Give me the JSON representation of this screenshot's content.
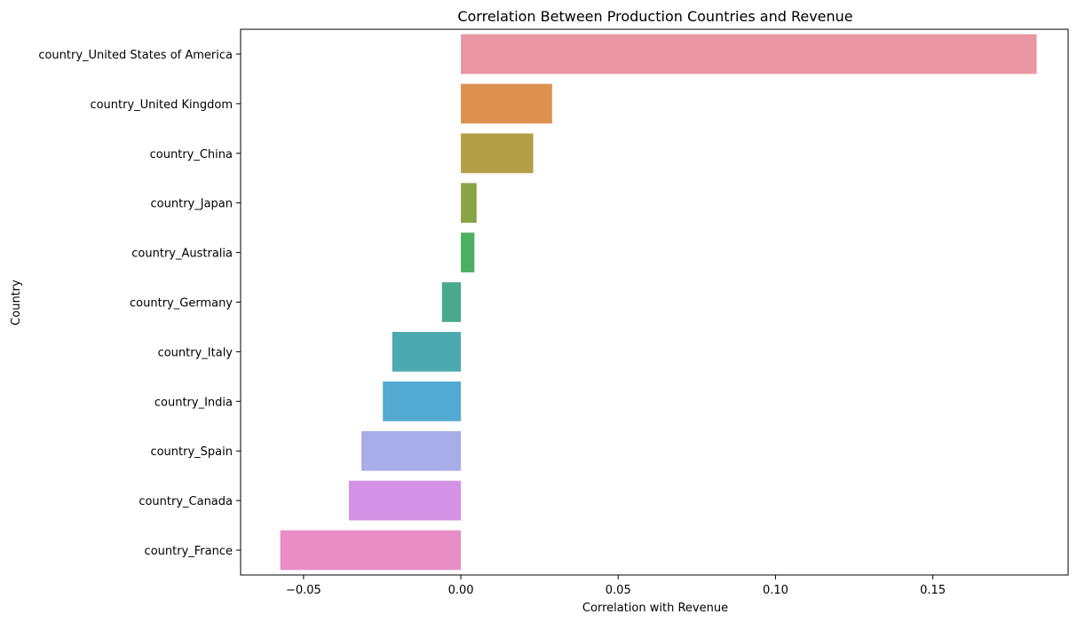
{
  "chart_data": {
    "type": "bar",
    "orientation": "horizontal",
    "title": "Correlation Between Production Countries and Revenue",
    "xlabel": "Correlation with Revenue",
    "ylabel": "Country",
    "xlim": [
      -0.07,
      0.193
    ],
    "xticks": [
      -0.05,
      0.0,
      0.05,
      0.1,
      0.15
    ],
    "xtick_labels": [
      "−0.05",
      "0.00",
      "0.05",
      "0.10",
      "0.15"
    ],
    "grid": false,
    "legend": "none",
    "categories": [
      "country_United States of America",
      "country_United Kingdom",
      "country_China",
      "country_Japan",
      "country_Australia",
      "country_Germany",
      "country_Italy",
      "country_India",
      "country_Spain",
      "country_Canada",
      "country_France"
    ],
    "values": [
      0.183,
      0.029,
      0.023,
      0.005,
      0.0043,
      -0.006,
      -0.0218,
      -0.0248,
      -0.0316,
      -0.0356,
      -0.0574
    ],
    "colors": [
      "#ea96a2",
      "#dd914f",
      "#b39f46",
      "#8aa347",
      "#4caf62",
      "#4aa88c",
      "#4ba9af",
      "#52a9d2",
      "#a8ace9",
      "#d492e6",
      "#e88ec5"
    ]
  }
}
